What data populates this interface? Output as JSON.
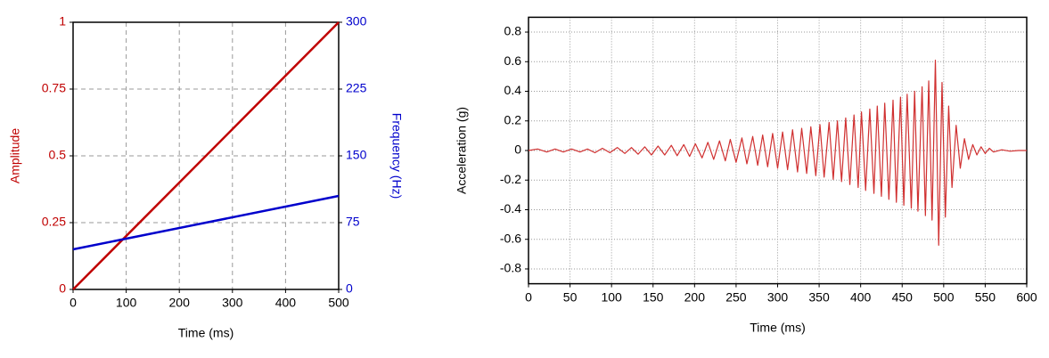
{
  "chart_data": [
    {
      "type": "line",
      "xlabel": "Time (ms)",
      "ylabel": "Amplitude",
      "y2label": "Frequency (Hz)",
      "x": [
        0,
        500
      ],
      "xlim": [
        0,
        500
      ],
      "xticks": [
        0,
        100,
        200,
        300,
        400,
        500
      ],
      "ylim": [
        0,
        1
      ],
      "yticks": [
        0,
        0.25,
        0.5,
        0.75,
        1
      ],
      "y2lim": [
        0,
        300
      ],
      "y2ticks": [
        0,
        75,
        150,
        225,
        300
      ],
      "grid": "dashed",
      "series": [
        {
          "color": "#c00000",
          "values": [
            0,
            1
          ]
        },
        {
          "color": "#0000cc",
          "values": [
            45,
            105
          ],
          "axis": "y2"
        }
      ]
    },
    {
      "type": "line",
      "xlabel": "Time (ms)",
      "ylabel": "Acceleration (g)",
      "x": [
        0,
        11,
        22,
        32,
        42,
        52,
        62,
        71,
        80,
        89,
        98,
        107,
        116,
        124,
        132,
        140,
        148,
        156,
        164,
        172,
        179,
        187,
        194,
        201,
        209,
        216,
        223,
        230,
        237,
        243,
        250,
        257,
        263,
        270,
        276,
        282,
        288,
        294,
        300,
        306,
        312,
        318,
        324,
        329,
        335,
        340,
        346,
        351,
        356,
        362,
        367,
        372,
        377,
        382,
        387,
        392,
        397,
        401,
        406,
        411,
        416,
        420,
        425,
        429,
        434,
        439,
        443,
        448,
        452,
        456,
        461,
        465,
        469,
        474,
        478,
        482,
        486,
        490,
        494,
        498,
        502,
        506,
        510,
        515,
        520,
        525,
        530,
        535,
        540,
        545,
        550,
        555,
        560,
        570,
        580,
        590,
        600
      ],
      "values": [
        0,
        0.01,
        -0.01,
        0.01,
        -0.01,
        0.01,
        -0.01,
        0.01,
        -0.015,
        0.015,
        -0.015,
        0.02,
        -0.02,
        0.02,
        -0.025,
        0.025,
        -0.03,
        0.03,
        -0.03,
        0.035,
        -0.035,
        0.04,
        -0.04,
        0.045,
        -0.05,
        0.055,
        -0.06,
        0.065,
        -0.07,
        0.075,
        -0.08,
        0.085,
        -0.09,
        0.095,
        -0.1,
        0.105,
        -0.11,
        0.115,
        -0.12,
        0.125,
        -0.13,
        0.14,
        -0.145,
        0.15,
        -0.155,
        0.16,
        -0.17,
        0.175,
        -0.18,
        0.19,
        -0.195,
        0.2,
        -0.21,
        0.22,
        -0.23,
        0.24,
        -0.25,
        0.26,
        -0.27,
        0.28,
        -0.29,
        0.3,
        -0.31,
        0.32,
        -0.33,
        0.34,
        -0.35,
        0.36,
        -0.37,
        0.38,
        -0.39,
        0.4,
        -0.41,
        0.43,
        -0.44,
        0.47,
        -0.47,
        0.61,
        -0.64,
        0.46,
        -0.45,
        0.3,
        -0.25,
        0.17,
        -0.12,
        0.08,
        -0.06,
        0.04,
        -0.03,
        0.025,
        -0.02,
        0.015,
        -0.01,
        0.005,
        -0.005,
        0,
        0
      ],
      "color": "#d03030",
      "xlim": [
        0,
        600
      ],
      "xticks": [
        0,
        50,
        100,
        150,
        200,
        250,
        300,
        350,
        400,
        450,
        500,
        550,
        600
      ],
      "ylim": [
        -0.9,
        0.9
      ],
      "yticks": [
        -0.8,
        -0.6,
        -0.4,
        -0.2,
        0,
        0.2,
        0.4,
        0.6,
        0.8
      ],
      "grid": "dotted"
    }
  ]
}
